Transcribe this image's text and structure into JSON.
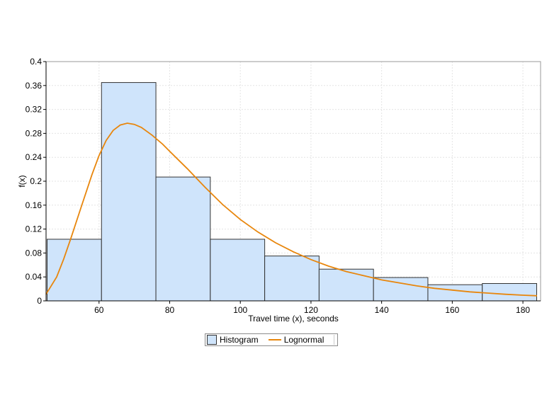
{
  "chart_data": {
    "type": "bar",
    "title": "",
    "xlabel": "Travel time (x), seconds",
    "ylabel": "f(x)",
    "xlim": [
      45,
      185
    ],
    "ylim": [
      0,
      0.4
    ],
    "x_ticks": [
      60,
      80,
      100,
      120,
      140,
      160,
      180
    ],
    "y_ticks": [
      0,
      0.04,
      0.08,
      0.12,
      0.16,
      0.2,
      0.24,
      0.28,
      0.32,
      0.36,
      0.4
    ],
    "grid": true,
    "legend_position": "bottom",
    "histogram": {
      "name": "Histogram",
      "bins": [
        {
          "x0": 45.3,
          "x1": 60.7,
          "density": 0.103
        },
        {
          "x0": 60.7,
          "x1": 76.1,
          "density": 0.365
        },
        {
          "x0": 76.1,
          "x1": 91.5,
          "density": 0.207
        },
        {
          "x0": 91.5,
          "x1": 106.9,
          "density": 0.103
        },
        {
          "x0": 106.9,
          "x1": 122.3,
          "density": 0.075
        },
        {
          "x0": 122.3,
          "x1": 137.7,
          "density": 0.053
        },
        {
          "x0": 137.7,
          "x1": 153.1,
          "density": 0.039
        },
        {
          "x0": 153.1,
          "x1": 168.5,
          "density": 0.027
        },
        {
          "x0": 168.5,
          "x1": 183.9,
          "density": 0.029
        }
      ]
    },
    "series": [
      {
        "name": "Lognormal",
        "type": "line",
        "x": [
          45,
          48,
          50,
          52,
          55,
          58,
          60,
          62,
          64,
          66,
          68,
          70,
          72,
          75,
          78,
          80,
          85,
          90,
          95,
          100,
          105,
          110,
          115,
          120,
          125,
          130,
          135,
          140,
          145,
          150,
          155,
          160,
          165,
          170,
          175,
          180,
          184
        ],
        "y": [
          0.011,
          0.04,
          0.07,
          0.104,
          0.158,
          0.211,
          0.243,
          0.268,
          0.285,
          0.294,
          0.297,
          0.295,
          0.29,
          0.277,
          0.262,
          0.25,
          0.221,
          0.19,
          0.161,
          0.136,
          0.115,
          0.097,
          0.082,
          0.069,
          0.058,
          0.049,
          0.042,
          0.035,
          0.03,
          0.025,
          0.021,
          0.018,
          0.015,
          0.013,
          0.011,
          0.0095,
          0.0085
        ]
      }
    ],
    "colors": {
      "histogram_fill": "#cfe4fb",
      "histogram_stroke": "#333333",
      "line": "#e8860c",
      "grid": "#e4e4e4",
      "axis": "#000000"
    }
  }
}
